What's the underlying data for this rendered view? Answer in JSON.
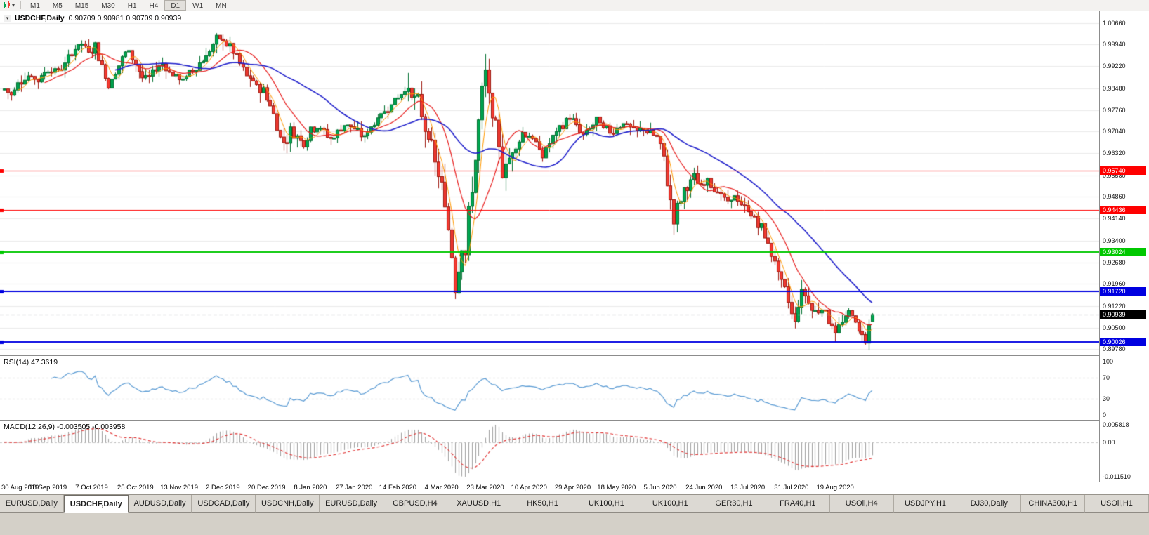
{
  "toolbar": {
    "timeframes": [
      "M1",
      "M5",
      "M15",
      "M30",
      "H1",
      "H4",
      "D1",
      "W1",
      "MN"
    ],
    "active_timeframe": "D1"
  },
  "chart": {
    "title": "USDCHF,Daily",
    "ohlc": "0.90709 0.90981 0.90709 0.90939"
  },
  "chart_data": {
    "type": "candlestick",
    "symbol": "USDCHF",
    "timeframe": "Daily",
    "open": "0.90709",
    "high": "0.90981",
    "low": "0.90709",
    "close": "0.90939",
    "up_color": "#00A651",
    "up_border": "#00702F",
    "down_color": "#F23B32",
    "down_border": "#9E1910",
    "y_axis_ticks": [
      "1.00660",
      "0.99940",
      "0.99220",
      "0.98480",
      "0.97760",
      "0.97040",
      "0.96320",
      "0.95580",
      "0.94860",
      "0.94140",
      "0.93400",
      "0.92680",
      "0.91960",
      "0.91220",
      "0.90500",
      "0.89780"
    ],
    "h_lines": [
      {
        "price": 0.9574,
        "label": "0.95740",
        "color": "#FF0000",
        "width": 1
      },
      {
        "price": 0.94436,
        "label": "0.94436",
        "color": "#FF0000",
        "width": 1
      },
      {
        "price": 0.93024,
        "label": "0.93024",
        "color": "#00C800",
        "width": 2
      },
      {
        "price": 0.9172,
        "label": "0.91720",
        "color": "#0000E0",
        "width": 2
      },
      {
        "price": 0.90026,
        "label": "0.90026",
        "color": "#0000E0",
        "width": 2
      }
    ],
    "current_price": {
      "value": 0.90939,
      "label": "0.90939",
      "bg": "#000000"
    },
    "x_labels": [
      "30 Aug 2019",
      "18 Sep 2019",
      "7 Oct 2019",
      "25 Oct 2019",
      "13 Nov 2019",
      "2 Dec 2019",
      "20 Dec 2019",
      "8 Jan 2020",
      "27 Jan 2020",
      "14 Feb 2020",
      "4 Mar 2020",
      "23 Mar 2020",
      "10 Apr 2020",
      "29 Apr 2020",
      "18 May 2020",
      "5 Jun 2020",
      "24 Jun 2020",
      "13 Jul 2020",
      "31 Jul 2020",
      "19 Aug 2020"
    ],
    "candles_per_label": 13,
    "num_candles": 259,
    "price_path": [
      [
        0,
        0.9845
      ],
      [
        2,
        0.9825
      ],
      [
        4,
        0.987
      ],
      [
        7,
        0.989
      ],
      [
        10,
        0.9875
      ],
      [
        13,
        0.9915
      ],
      [
        16,
        0.9905
      ],
      [
        19,
        0.9945
      ],
      [
        21,
        0.9985
      ],
      [
        23,
        0.9995
      ],
      [
        25,
        0.997
      ],
      [
        27,
        0.999
      ],
      [
        29,
        0.992
      ],
      [
        31,
        0.986
      ],
      [
        33,
        0.99
      ],
      [
        35,
        0.995
      ],
      [
        37,
        0.9975
      ],
      [
        39,
        0.993
      ],
      [
        41,
        0.988
      ],
      [
        43,
        0.9885
      ],
      [
        45,
        0.9915
      ],
      [
        47,
        0.993
      ],
      [
        49,
        0.9905
      ],
      [
        51,
        0.9885
      ],
      [
        53,
        0.9875
      ],
      [
        55,
        0.99
      ],
      [
        57,
        0.992
      ],
      [
        59,
        0.9945
      ],
      [
        61,
        0.9975
      ],
      [
        63,
        1.0005
      ],
      [
        65,
        1.001
      ],
      [
        67,
        0.9985
      ],
      [
        69,
        0.995
      ],
      [
        71,
        0.9905
      ],
      [
        73,
        0.9875
      ],
      [
        75,
        0.9855
      ],
      [
        77,
        0.984
      ],
      [
        79,
        0.9795
      ],
      [
        81,
        0.972
      ],
      [
        83,
        0.9665
      ],
      [
        85,
        0.9705
      ],
      [
        87,
        0.969
      ],
      [
        89,
        0.967
      ],
      [
        91,
        0.971
      ],
      [
        93,
        0.9725
      ],
      [
        95,
        0.97
      ],
      [
        97,
        0.968
      ],
      [
        99,
        0.97
      ],
      [
        101,
        0.973
      ],
      [
        103,
        0.972
      ],
      [
        105,
        0.97
      ],
      [
        107,
        0.9685
      ],
      [
        109,
        0.972
      ],
      [
        111,
        0.975
      ],
      [
        113,
        0.977
      ],
      [
        115,
        0.98
      ],
      [
        117,
        0.982
      ],
      [
        119,
        0.9845
      ],
      [
        121,
        0.983
      ],
      [
        123,
        0.979
      ],
      [
        125,
        0.972
      ],
      [
        127,
        0.964
      ],
      [
        129,
        0.956
      ],
      [
        131,
        0.946
      ],
      [
        133,
        0.93
      ],
      [
        134,
        0.9195
      ],
      [
        135,
        0.926
      ],
      [
        136,
        0.934
      ],
      [
        137,
        0.93
      ],
      [
        138,
        0.942
      ],
      [
        139,
        0.951
      ],
      [
        140,
        0.962
      ],
      [
        141,
        0.973
      ],
      [
        142,
        0.983
      ],
      [
        143,
        0.9895
      ],
      [
        144,
        0.982
      ],
      [
        145,
        0.975
      ],
      [
        146,
        0.97
      ],
      [
        147,
        0.965
      ],
      [
        148,
        0.958
      ],
      [
        150,
        0.9615
      ],
      [
        152,
        0.966
      ],
      [
        154,
        0.97
      ],
      [
        156,
        0.9695
      ],
      [
        158,
        0.966
      ],
      [
        160,
        0.9625
      ],
      [
        162,
        0.9665
      ],
      [
        164,
        0.97
      ],
      [
        166,
        0.9725
      ],
      [
        168,
        0.9755
      ],
      [
        170,
        0.972
      ],
      [
        172,
        0.969
      ],
      [
        174,
        0.9715
      ],
      [
        176,
        0.974
      ],
      [
        178,
        0.972
      ],
      [
        180,
        0.97
      ],
      [
        182,
        0.972
      ],
      [
        184,
        0.9735
      ],
      [
        186,
        0.9715
      ],
      [
        188,
        0.97
      ],
      [
        190,
        0.9715
      ],
      [
        192,
        0.97
      ],
      [
        194,
        0.9685
      ],
      [
        196,
        0.961
      ],
      [
        197,
        0.954
      ],
      [
        198,
        0.947
      ],
      [
        199,
        0.941
      ],
      [
        200,
        0.9445
      ],
      [
        201,
        0.948
      ],
      [
        203,
        0.9525
      ],
      [
        205,
        0.955
      ],
      [
        207,
        0.952
      ],
      [
        209,
        0.9545
      ],
      [
        211,
        0.9515
      ],
      [
        213,
        0.949
      ],
      [
        215,
        0.9465
      ],
      [
        217,
        0.949
      ],
      [
        219,
        0.9455
      ],
      [
        221,
        0.944
      ],
      [
        223,
        0.9415
      ],
      [
        225,
        0.938
      ],
      [
        227,
        0.933
      ],
      [
        229,
        0.927
      ],
      [
        231,
        0.92
      ],
      [
        233,
        0.914
      ],
      [
        234,
        0.91
      ],
      [
        235,
        0.9075
      ],
      [
        236,
        0.913
      ],
      [
        237,
        0.9175
      ],
      [
        239,
        0.914
      ],
      [
        241,
        0.91
      ],
      [
        243,
        0.9125
      ],
      [
        245,
        0.908
      ],
      [
        247,
        0.903
      ],
      [
        249,
        0.907
      ],
      [
        251,
        0.9098
      ],
      [
        252,
        0.9105
      ],
      [
        253,
        0.9068
      ],
      [
        254,
        0.903
      ],
      [
        255,
        0.904
      ],
      [
        256,
        0.9005
      ],
      [
        257,
        0.9065
      ],
      [
        258,
        0.9094
      ]
    ],
    "moving_averages": [
      {
        "name": "fast-ma",
        "period": 5,
        "color": "#FF9900",
        "width": 1
      },
      {
        "name": "mid-ma",
        "period": 13,
        "color": "#E81C1C",
        "width": 1.2
      },
      {
        "name": "slow-ma",
        "period": 34,
        "color": "#2020CC",
        "width": 1.6
      }
    ],
    "indicators": {
      "rsi": {
        "label": "RSI(14) 47.3619",
        "period": 14,
        "value": 47.3619,
        "levels": [
          "100",
          "70",
          "30",
          "0"
        ],
        "color": "#5A9BD4"
      },
      "macd": {
        "label": "MACD(12,26,9) -0.003505 -0.003958",
        "fast": 12,
        "slow": 26,
        "signal_period": 9,
        "macd_value": -0.003505,
        "signal_value": -0.003958,
        "scale_max": "0.005818",
        "scale_zero": "0.00",
        "scale_min": "-0.011510",
        "hist_color": "#A0A0A0",
        "signal_color": "#E03030"
      }
    }
  },
  "tabs": {
    "items": [
      {
        "label": "EURUSD,Daily",
        "active": false
      },
      {
        "label": "USDCHF,Daily",
        "active": true
      },
      {
        "label": "AUDUSD,Daily",
        "active": false
      },
      {
        "label": "USDCAD,Daily",
        "active": false
      },
      {
        "label": "USDCNH,Daily",
        "active": false
      },
      {
        "label": "EURUSD,Daily",
        "active": false
      },
      {
        "label": "GBPUSD,H4",
        "active": false
      },
      {
        "label": "XAUUSD,H1",
        "active": false
      },
      {
        "label": "HK50,H1",
        "active": false
      },
      {
        "label": "UK100,H1",
        "active": false
      },
      {
        "label": "UK100,H1",
        "active": false
      },
      {
        "label": "GER30,H1",
        "active": false
      },
      {
        "label": "FRA40,H1",
        "active": false
      },
      {
        "label": "USOil,H4",
        "active": false
      },
      {
        "label": "USDJPY,H1",
        "active": false
      },
      {
        "label": "DJ30,Daily",
        "active": false
      },
      {
        "label": "CHINA300,H1",
        "active": false
      },
      {
        "label": "USOil,H1",
        "active": false
      }
    ]
  }
}
